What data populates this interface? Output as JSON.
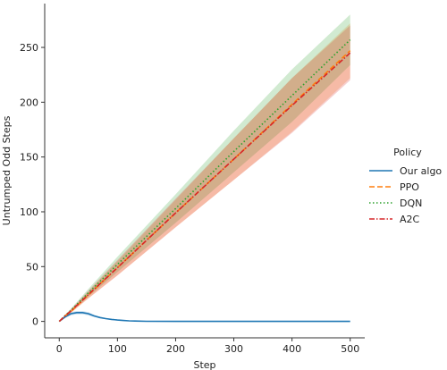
{
  "chart_data": {
    "type": "line",
    "xlabel": "Step",
    "ylabel": "Untrumped Odd Steps",
    "xlim": [
      -25,
      525
    ],
    "ylim": [
      -15,
      290
    ],
    "xticks": [
      0,
      100,
      200,
      300,
      400,
      500
    ],
    "yticks": [
      0,
      50,
      100,
      150,
      200,
      250
    ],
    "grid": false,
    "legend": {
      "title": "Policy",
      "placement": "right, outside plot area"
    },
    "series": [
      {
        "name": "Our algo",
        "color": "#1f77b4",
        "style": "solid",
        "x": [
          0,
          10,
          20,
          30,
          40,
          50,
          60,
          70,
          80,
          90,
          100,
          110,
          120,
          130,
          150,
          200,
          300,
          400,
          500
        ],
        "y": [
          0,
          4,
          7,
          8,
          8,
          7,
          5,
          3.5,
          2.5,
          1.8,
          1.2,
          0.8,
          0.5,
          0.3,
          0.1,
          0,
          0,
          0,
          0
        ],
        "band_lower": [
          0,
          3,
          5.5,
          6.5,
          6.5,
          5.5,
          4,
          2.8,
          2,
          1.4,
          0.9,
          0.6,
          0.35,
          0.2,
          0.05,
          0,
          0,
          0,
          0
        ],
        "band_upper": [
          0,
          5,
          8.5,
          9.5,
          9.5,
          8.5,
          6,
          4.2,
          3,
          2.2,
          1.5,
          1,
          0.65,
          0.4,
          0.15,
          0,
          0,
          0,
          0
        ]
      },
      {
        "name": "PPO",
        "color": "#ff7f0e",
        "style": "dashed",
        "x": [
          0,
          10,
          20,
          50,
          100,
          200,
          300,
          400,
          500
        ],
        "y": [
          0,
          5,
          9,
          24,
          49,
          99,
          148,
          198,
          247
        ],
        "band_lower": [
          0,
          4,
          7.5,
          21,
          42,
          86,
          129,
          173,
          222
        ],
        "band_upper": [
          0,
          6,
          10.5,
          27,
          55,
          111,
          167,
          222,
          272
        ]
      },
      {
        "name": "DQN",
        "color": "#2ca02c",
        "style": "dotted",
        "x": [
          0,
          10,
          20,
          50,
          100,
          200,
          300,
          400,
          500
        ],
        "y": [
          0,
          5.2,
          10,
          26,
          52,
          103,
          155,
          206,
          257
        ],
        "band_lower": [
          0,
          4.3,
          8.5,
          22.5,
          45,
          90,
          136,
          182,
          234
        ],
        "band_upper": [
          0,
          6.1,
          11.5,
          29.5,
          59,
          116,
          174,
          230,
          280
        ]
      },
      {
        "name": "A2C",
        "color": "#d62728",
        "style": "dashdot",
        "x": [
          0,
          10,
          20,
          50,
          100,
          200,
          300,
          400,
          500
        ],
        "y": [
          0,
          5,
          9.5,
          24.5,
          49,
          99,
          148,
          197,
          245
        ],
        "band_lower": [
          0,
          4,
          8,
          21,
          42,
          86,
          129,
          172,
          220
        ],
        "band_upper": [
          0,
          6,
          11,
          28,
          56,
          112,
          167,
          222,
          270
        ]
      }
    ]
  }
}
